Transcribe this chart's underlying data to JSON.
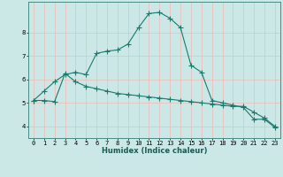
{
  "xlabel": "Humidex (Indice chaleur)",
  "background_color": "#cce8e6",
  "plot_bg_color": "#cce8e6",
  "grid_color": "#f0b8b8",
  "line_color": "#1a7a6e",
  "x_values": [
    0,
    1,
    2,
    3,
    4,
    5,
    6,
    7,
    8,
    9,
    10,
    11,
    12,
    13,
    14,
    15,
    16,
    17,
    18,
    19,
    20,
    21,
    22,
    23
  ],
  "curve1_y": [
    5.1,
    5.5,
    5.9,
    6.2,
    6.3,
    6.2,
    7.1,
    7.2,
    7.25,
    7.5,
    8.2,
    8.8,
    8.85,
    8.6,
    8.2,
    6.6,
    6.3,
    5.1,
    5.0,
    4.9,
    4.8,
    4.3,
    4.3,
    3.95
  ],
  "curve2_y": [
    5.1,
    5.1,
    5.05,
    6.25,
    5.9,
    5.7,
    5.6,
    5.5,
    5.4,
    5.35,
    5.3,
    5.25,
    5.2,
    5.15,
    5.1,
    5.05,
    5.0,
    4.95,
    4.9,
    4.85,
    4.85,
    4.6,
    4.35,
    4.0
  ],
  "ylim": [
    3.5,
    9.3
  ],
  "xlim": [
    -0.5,
    23.5
  ],
  "yticks": [
    4,
    5,
    6,
    7,
    8
  ],
  "xticks": [
    0,
    1,
    2,
    3,
    4,
    5,
    6,
    7,
    8,
    9,
    10,
    11,
    12,
    13,
    14,
    15,
    16,
    17,
    18,
    19,
    20,
    21,
    22,
    23
  ],
  "tick_fontsize": 5.0,
  "xlabel_fontsize": 6.0,
  "marker_size": 2.0,
  "line_width": 0.8
}
